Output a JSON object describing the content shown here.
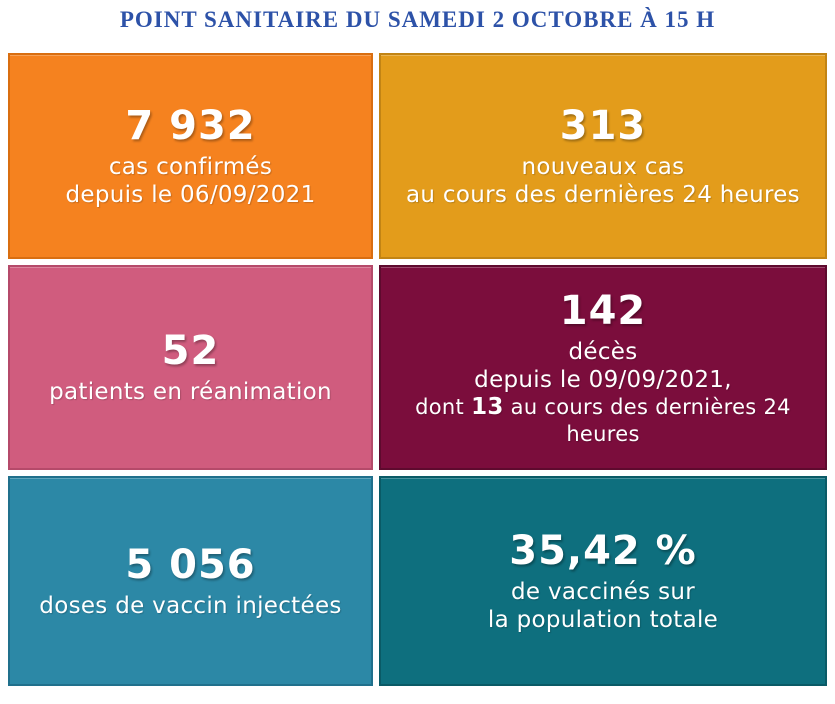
{
  "header": {
    "title": "POINT SANITAIRE DU SAMEDI 2 OCTOBRE À 15 H",
    "title_color": "#2D52A8"
  },
  "tiles": [
    {
      "id": "confirmed-cases",
      "value": "7 932",
      "lines": [
        "cas confirmés",
        "depuis le 06/09/2021"
      ],
      "bg": "#F5821F",
      "border": "#D96E10",
      "text_color": "#FFFFFF"
    },
    {
      "id": "new-cases",
      "value": "313",
      "lines": [
        "nouveaux cas",
        "au cours des dernières 24 heures"
      ],
      "bg": "#E39C1B",
      "border": "#C28414",
      "text_color": "#FFFFFF"
    },
    {
      "id": "icu-patients",
      "value": "52",
      "lines": [
        "patients en réanimation"
      ],
      "bg": "#D05C7E",
      "border": "#B54A6A",
      "text_color": "#FFFFFF"
    },
    {
      "id": "deaths",
      "value": "142",
      "lines": [
        "décès",
        "depuis le 09/09/2021,"
      ],
      "detail": {
        "prefix": "dont ",
        "bold": "13",
        "suffix": " au cours des dernières 24 heures"
      },
      "bg": "#7B0D3C",
      "border": "#5E0A2E",
      "text_color": "#FFFFFF"
    },
    {
      "id": "vaccine-doses",
      "value": "5 056",
      "lines": [
        "doses de vaccin injectées"
      ],
      "bg": "#2C88A6",
      "border": "#20708C",
      "text_color": "#FFFFFF"
    },
    {
      "id": "vaccinated-share",
      "value": "35,42 %",
      "lines": [
        "de vaccinés sur",
        "la population totale"
      ],
      "bg": "#0E6F7E",
      "border": "#0A5A66",
      "text_color": "#FFFFFF"
    }
  ],
  "chart_data": {
    "type": "table",
    "title": "POINT SANITAIRE DU SAMEDI 2 OCTOBRE À 15 H",
    "metrics": [
      {
        "value": 7932,
        "label": "cas confirmés depuis le 06/09/2021"
      },
      {
        "value": 313,
        "label": "nouveaux cas au cours des dernières 24 heures"
      },
      {
        "value": 52,
        "label": "patients en réanimation"
      },
      {
        "value": 142,
        "label": "décès depuis le 09/09/2021, dont 13 au cours des dernières 24 heures"
      },
      {
        "value": 5056,
        "label": "doses de vaccin injectées"
      },
      {
        "value": 35.42,
        "label": "% de vaccinés sur la population totale"
      }
    ]
  }
}
